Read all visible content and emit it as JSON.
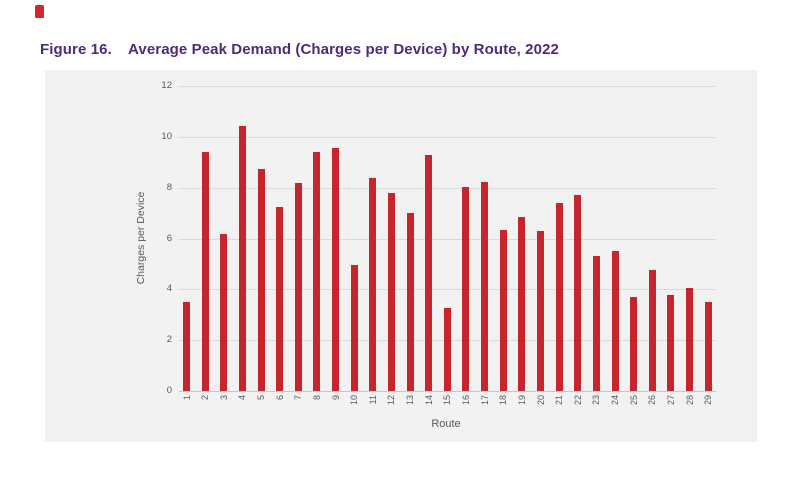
{
  "page": {
    "logo_mark_color": "#D2272E"
  },
  "figure": {
    "label": "Figure 16.",
    "title": "Average Peak Demand (Charges per Device) by Route, 2022",
    "title_color": "#53297D"
  },
  "chart_data": {
    "type": "bar",
    "categories": [
      "1",
      "2",
      "3",
      "4",
      "5",
      "6",
      "7",
      "8",
      "9",
      "10",
      "11",
      "12",
      "13",
      "14",
      "15",
      "16",
      "17",
      "18",
      "19",
      "20",
      "21",
      "22",
      "23",
      "24",
      "25",
      "26",
      "27",
      "28",
      "29"
    ],
    "values": [
      3.5,
      9.4,
      6.2,
      10.45,
      8.75,
      7.25,
      8.2,
      9.4,
      9.55,
      4.95,
      8.4,
      7.8,
      7.0,
      9.3,
      3.25,
      8.05,
      8.25,
      6.35,
      6.85,
      6.3,
      7.4,
      7.7,
      5.3,
      5.5,
      3.7,
      4.75,
      3.8,
      4.05,
      3.5
    ],
    "title": "",
    "xlabel": "Route",
    "ylabel": "Charges per Device",
    "ylim": [
      0,
      12
    ],
    "yticks": [
      0,
      2,
      4,
      6,
      8,
      10,
      12
    ],
    "grid": true,
    "legend_position": "none",
    "bar_color": "#C8242C",
    "panel_color": "#F2F2F2",
    "gridline_color": "#D9D9D9",
    "axisline_color": "#C6C6C6",
    "axis_text_color": "#595959"
  }
}
